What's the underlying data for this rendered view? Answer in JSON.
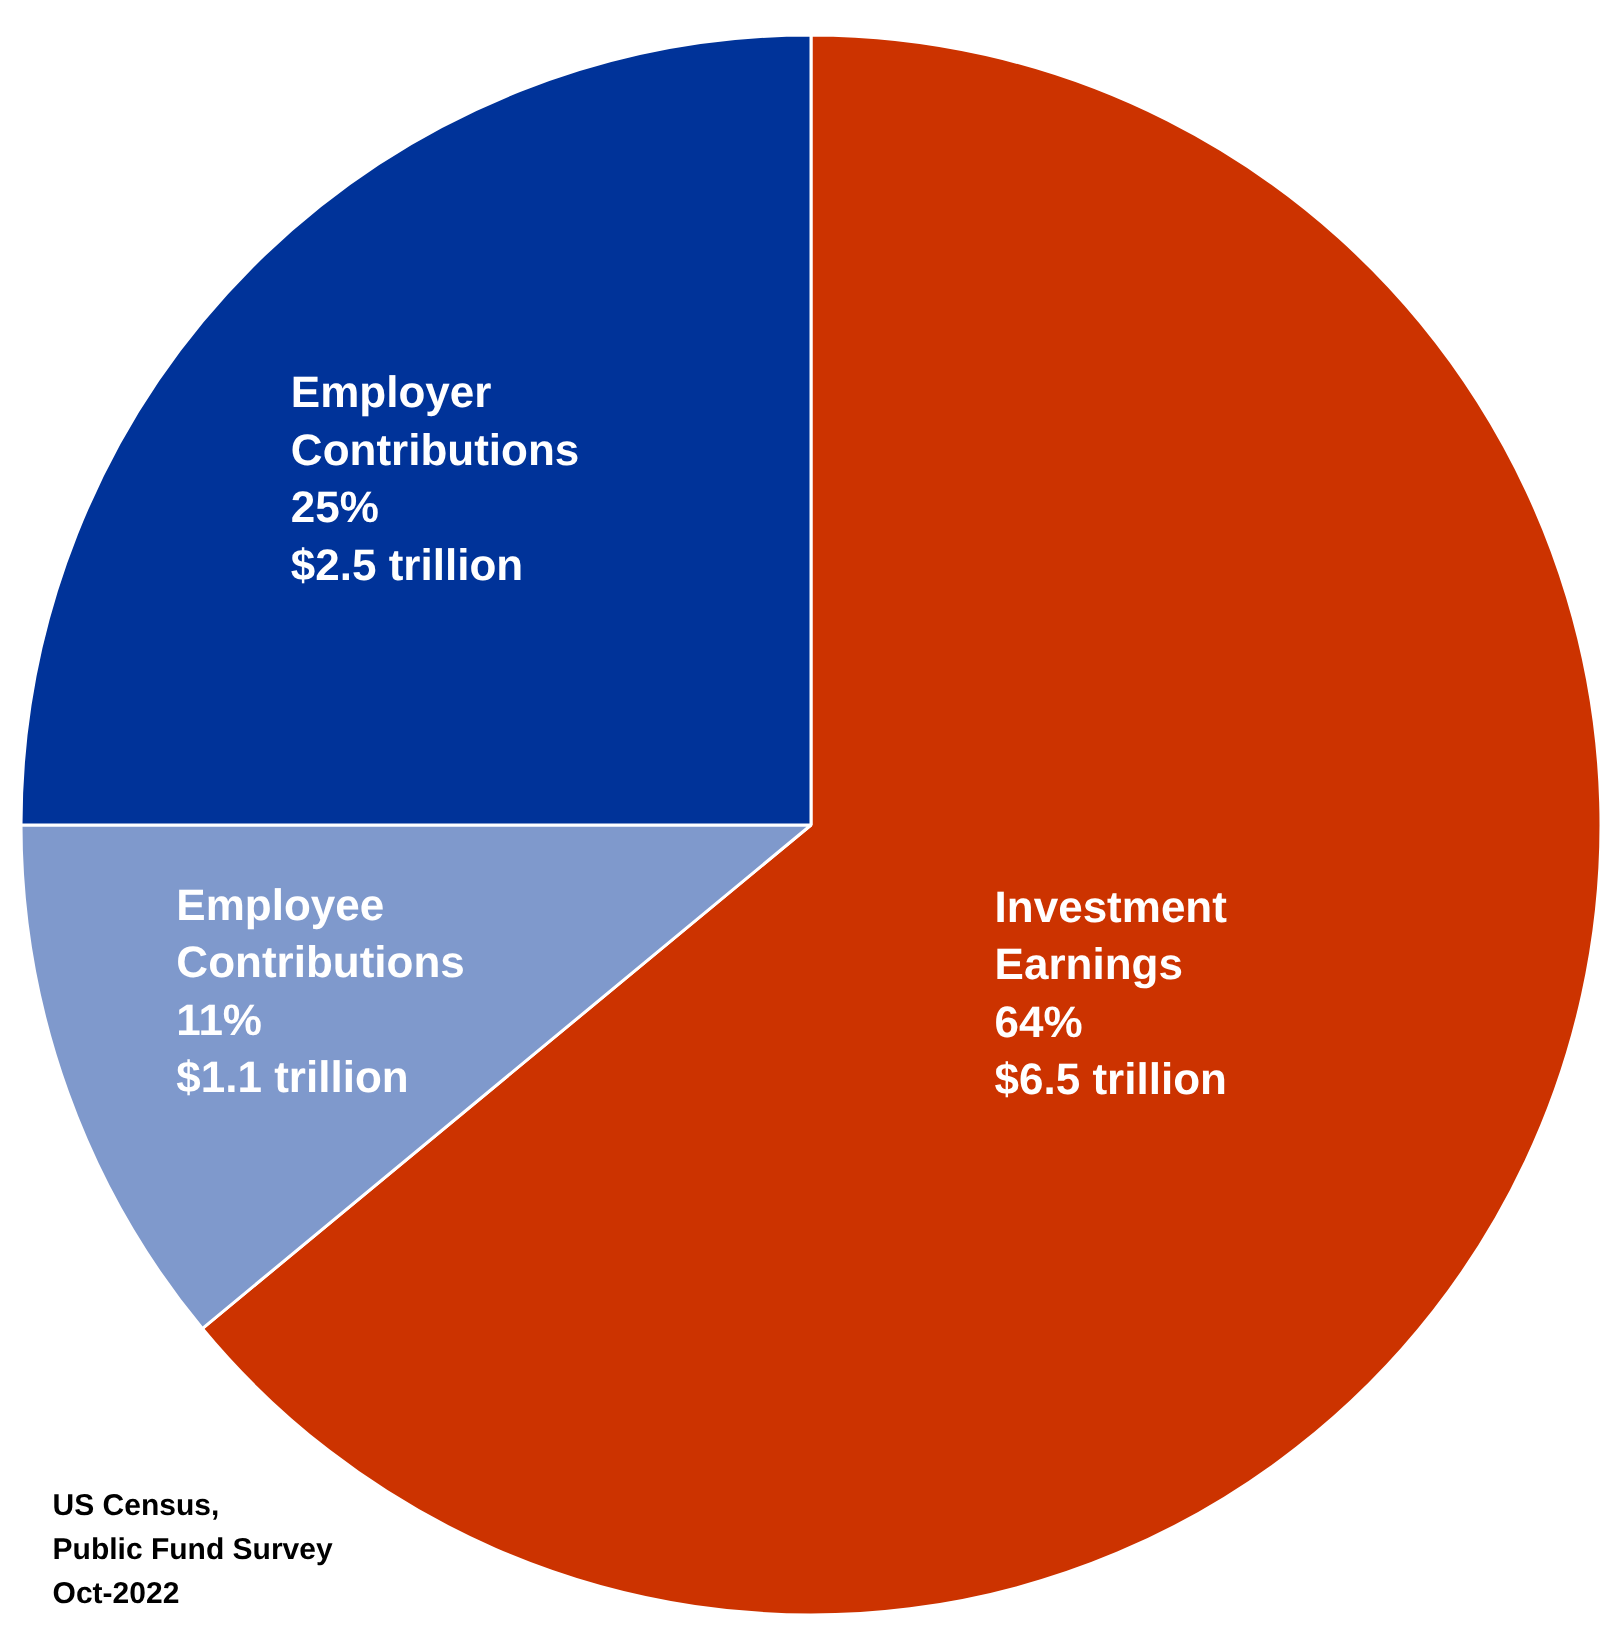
{
  "chart_data": {
    "type": "pie",
    "categories": [
      "Investment Earnings",
      "Employee Contributions",
      "Employer Contributions"
    ],
    "values": [
      64,
      11,
      25
    ],
    "colors": [
      "#cc3300",
      "#7f99cc",
      "#003399"
    ],
    "value_labels": [
      "64%\n$6.5 trillion",
      "11%\n$1.1 trillion",
      "25%\n$2.5 trillion"
    ],
    "annotations": [
      "US Census,\nPublic Fund Survey\nOct-2022"
    ]
  }
}
